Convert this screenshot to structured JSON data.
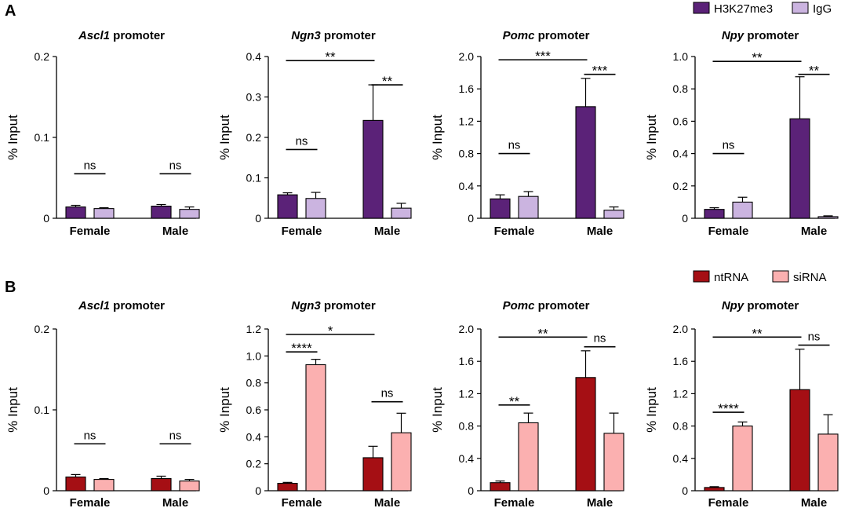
{
  "figure": {
    "rows": [
      {
        "letter": "A",
        "legend": [
          {
            "name": "H3K27me3",
            "color": "#5b2278"
          },
          {
            "name": "IgG",
            "color": "#cbb4e0"
          }
        ]
      },
      {
        "letter": "B",
        "legend": [
          {
            "name": "ntRNA",
            "color": "#a50f14"
          },
          {
            "name": "siRNA",
            "color": "#fbb0b0"
          }
        ]
      }
    ]
  },
  "chart_data": [
    {
      "row": 0,
      "col": 0,
      "type": "bar",
      "title_italic": "Ascl1",
      "title_rest": " promoter",
      "ylabel": "% Input",
      "ylim": [
        0,
        0.2
      ],
      "yticks": [
        "0",
        "0.1",
        "0.2"
      ],
      "categories": [
        "Female",
        "Male"
      ],
      "series": [
        {
          "name": "H3K27me3",
          "values": [
            0.014,
            0.015
          ],
          "errors": [
            0.002,
            0.002
          ]
        },
        {
          "name": "IgG",
          "values": [
            0.012,
            0.011
          ],
          "errors": [
            0.001,
            0.003
          ]
        }
      ],
      "annotations": [
        {
          "text": "ns",
          "from": [
            0,
            0
          ],
          "to": [
            0,
            1
          ],
          "y": 0.055
        },
        {
          "text": "ns",
          "from": [
            1,
            0
          ],
          "to": [
            1,
            1
          ],
          "y": 0.055
        }
      ]
    },
    {
      "row": 0,
      "col": 1,
      "type": "bar",
      "title_italic": "Ngn3",
      "title_rest": " promoter",
      "ylabel": "% Input",
      "ylim": [
        0,
        0.4
      ],
      "yticks": [
        "0",
        "0.1",
        "0.2",
        "0.3",
        "0.4"
      ],
      "categories": [
        "Female",
        "Male"
      ],
      "series": [
        {
          "name": "H3K27me3",
          "values": [
            0.058,
            0.242
          ],
          "errors": [
            0.005,
            0.088
          ]
        },
        {
          "name": "IgG",
          "values": [
            0.049,
            0.025
          ],
          "errors": [
            0.015,
            0.012
          ]
        }
      ],
      "annotations": [
        {
          "text": "ns",
          "from": [
            0,
            0
          ],
          "to": [
            0,
            1
          ],
          "y": 0.17
        },
        {
          "text": "**",
          "from": [
            0,
            0
          ],
          "to": [
            1,
            0
          ],
          "y": 0.39
        },
        {
          "text": "**",
          "from": [
            1,
            0
          ],
          "to": [
            1,
            1
          ],
          "y": 0.33
        }
      ]
    },
    {
      "row": 0,
      "col": 2,
      "type": "bar",
      "title_italic": "Pomc",
      "title_rest": " promoter",
      "ylabel": "% Input",
      "ylim": [
        0,
        2.0
      ],
      "yticks": [
        "0",
        "0.4",
        "0.8",
        "1.2",
        "1.6",
        "2.0"
      ],
      "categories": [
        "Female",
        "Male"
      ],
      "series": [
        {
          "name": "H3K27me3",
          "values": [
            0.24,
            1.38
          ],
          "errors": [
            0.05,
            0.35
          ]
        },
        {
          "name": "IgG",
          "values": [
            0.27,
            0.1
          ],
          "errors": [
            0.06,
            0.04
          ]
        }
      ],
      "annotations": [
        {
          "text": "ns",
          "from": [
            0,
            0
          ],
          "to": [
            0,
            1
          ],
          "y": 0.8
        },
        {
          "text": "***",
          "from": [
            0,
            0
          ],
          "to": [
            1,
            0
          ],
          "y": 1.96
        },
        {
          "text": "***",
          "from": [
            1,
            0
          ],
          "to": [
            1,
            1
          ],
          "y": 1.78
        }
      ]
    },
    {
      "row": 0,
      "col": 3,
      "type": "bar",
      "title_italic": "Npy",
      "title_rest": " promoter",
      "ylabel": "% Input",
      "ylim": [
        0,
        1.0
      ],
      "yticks": [
        "0",
        "0.2",
        "0.4",
        "0.6",
        "0.8",
        "1.0"
      ],
      "categories": [
        "Female",
        "Male"
      ],
      "series": [
        {
          "name": "H3K27me3",
          "values": [
            0.055,
            0.615
          ],
          "errors": [
            0.01,
            0.26
          ]
        },
        {
          "name": "IgG",
          "values": [
            0.1,
            0.01
          ],
          "errors": [
            0.03,
            0.005
          ]
        }
      ],
      "annotations": [
        {
          "text": "ns",
          "from": [
            0,
            0
          ],
          "to": [
            0,
            1
          ],
          "y": 0.4
        },
        {
          "text": "**",
          "from": [
            0,
            0
          ],
          "to": [
            1,
            0
          ],
          "y": 0.97
        },
        {
          "text": "**",
          "from": [
            1,
            0
          ],
          "to": [
            1,
            1
          ],
          "y": 0.89
        }
      ]
    },
    {
      "row": 1,
      "col": 0,
      "type": "bar",
      "title_italic": "Ascl1",
      "title_rest": " promoter",
      "ylabel": "% Input",
      "ylim": [
        0,
        0.2
      ],
      "yticks": [
        "0",
        "0.1",
        "0.2"
      ],
      "categories": [
        "Female",
        "Male"
      ],
      "series": [
        {
          "name": "ntRNA",
          "values": [
            0.017,
            0.015
          ],
          "errors": [
            0.003,
            0.003
          ]
        },
        {
          "name": "siRNA",
          "values": [
            0.014,
            0.012
          ],
          "errors": [
            0.001,
            0.002
          ]
        }
      ],
      "annotations": [
        {
          "text": "ns",
          "from": [
            0,
            0
          ],
          "to": [
            0,
            1
          ],
          "y": 0.058
        },
        {
          "text": "ns",
          "from": [
            1,
            0
          ],
          "to": [
            1,
            1
          ],
          "y": 0.058
        }
      ]
    },
    {
      "row": 1,
      "col": 1,
      "type": "bar",
      "title_italic": "Ngn3",
      "title_rest": " promoter",
      "ylabel": "% Input",
      "ylim": [
        0,
        1.2
      ],
      "yticks": [
        "0",
        "0.2",
        "0.4",
        "0.6",
        "0.8",
        "1.0",
        "1.2"
      ],
      "categories": [
        "Female",
        "Male"
      ],
      "series": [
        {
          "name": "ntRNA",
          "values": [
            0.055,
            0.245
          ],
          "errors": [
            0.007,
            0.085
          ]
        },
        {
          "name": "siRNA",
          "values": [
            0.935,
            0.43
          ],
          "errors": [
            0.04,
            0.145
          ]
        }
      ],
      "annotations": [
        {
          "text": "****",
          "from": [
            0,
            0
          ],
          "to": [
            0,
            1
          ],
          "y": 1.03
        },
        {
          "text": "*",
          "from": [
            0,
            0
          ],
          "to": [
            1,
            0
          ],
          "y": 1.16
        },
        {
          "text": "ns",
          "from": [
            1,
            0
          ],
          "to": [
            1,
            1
          ],
          "y": 0.66
        }
      ]
    },
    {
      "row": 1,
      "col": 2,
      "type": "bar",
      "title_italic": "Pomc",
      "title_rest": " promoter",
      "ylabel": "% Input",
      "ylim": [
        0,
        2.0
      ],
      "yticks": [
        "0",
        "0.4",
        "0.8",
        "1.2",
        "1.6",
        "2.0"
      ],
      "categories": [
        "Female",
        "Male"
      ],
      "series": [
        {
          "name": "ntRNA",
          "values": [
            0.1,
            1.4
          ],
          "errors": [
            0.02,
            0.33
          ]
        },
        {
          "name": "siRNA",
          "values": [
            0.84,
            0.71
          ],
          "errors": [
            0.12,
            0.25
          ]
        }
      ],
      "annotations": [
        {
          "text": "**",
          "from": [
            0,
            0
          ],
          "to": [
            0,
            1
          ],
          "y": 1.06
        },
        {
          "text": "**",
          "from": [
            0,
            0
          ],
          "to": [
            1,
            0
          ],
          "y": 1.9
        },
        {
          "text": "ns",
          "from": [
            1,
            0
          ],
          "to": [
            1,
            1
          ],
          "y": 1.78
        }
      ]
    },
    {
      "row": 1,
      "col": 3,
      "type": "bar",
      "title_italic": "Npy",
      "title_rest": " promoter",
      "ylabel": "% Input",
      "ylim": [
        0,
        2.0
      ],
      "yticks": [
        "0",
        "0.4",
        "0.8",
        "1.2",
        "1.6",
        "2.0"
      ],
      "categories": [
        "Female",
        "Male"
      ],
      "series": [
        {
          "name": "ntRNA",
          "values": [
            0.04,
            1.25
          ],
          "errors": [
            0.01,
            0.5
          ]
        },
        {
          "name": "siRNA",
          "values": [
            0.8,
            0.7
          ],
          "errors": [
            0.05,
            0.24
          ]
        }
      ],
      "annotations": [
        {
          "text": "****",
          "from": [
            0,
            0
          ],
          "to": [
            0,
            1
          ],
          "y": 0.97
        },
        {
          "text": "**",
          "from": [
            0,
            0
          ],
          "to": [
            1,
            0
          ],
          "y": 1.9
        },
        {
          "text": "ns",
          "from": [
            1,
            0
          ],
          "to": [
            1,
            1
          ],
          "y": 1.8
        }
      ]
    }
  ]
}
